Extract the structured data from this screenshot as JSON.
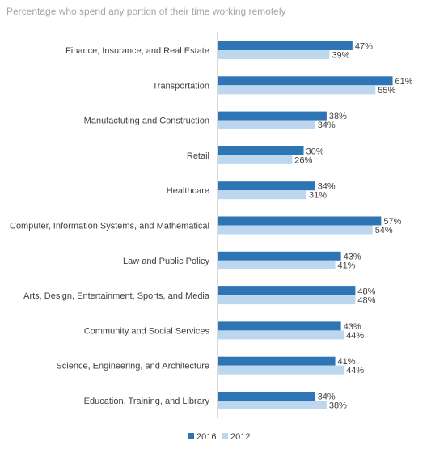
{
  "title": "Percentage who spend any portion of their time working remotely",
  "chart_data": {
    "type": "bar",
    "orientation": "horizontal",
    "title": "Percentage who spend any portion of their time working remotely",
    "categories": [
      "Finance, Insurance, and Real Estate",
      "Transportation",
      "Manufactuting and Construction",
      "Retail",
      "Healthcare",
      "Computer, Information Systems, and Mathematical",
      "Law and Public Policy",
      "Arts, Design, Entertainment, Sports, and Media",
      "Community and Social Services",
      "Science, Engineering, and Architecture",
      "Education, Training, and Library"
    ],
    "series": [
      {
        "name": "2016",
        "color": "#2e75b6",
        "values": [
          47,
          61,
          38,
          30,
          34,
          57,
          43,
          48,
          43,
          41,
          34
        ]
      },
      {
        "name": "2012",
        "color": "#bdd7ee",
        "values": [
          39,
          55,
          34,
          26,
          31,
          54,
          41,
          48,
          44,
          44,
          38
        ]
      }
    ],
    "value_suffix": "%",
    "xlim": [
      0,
      100
    ],
    "grid": false,
    "legend": "bottom"
  }
}
